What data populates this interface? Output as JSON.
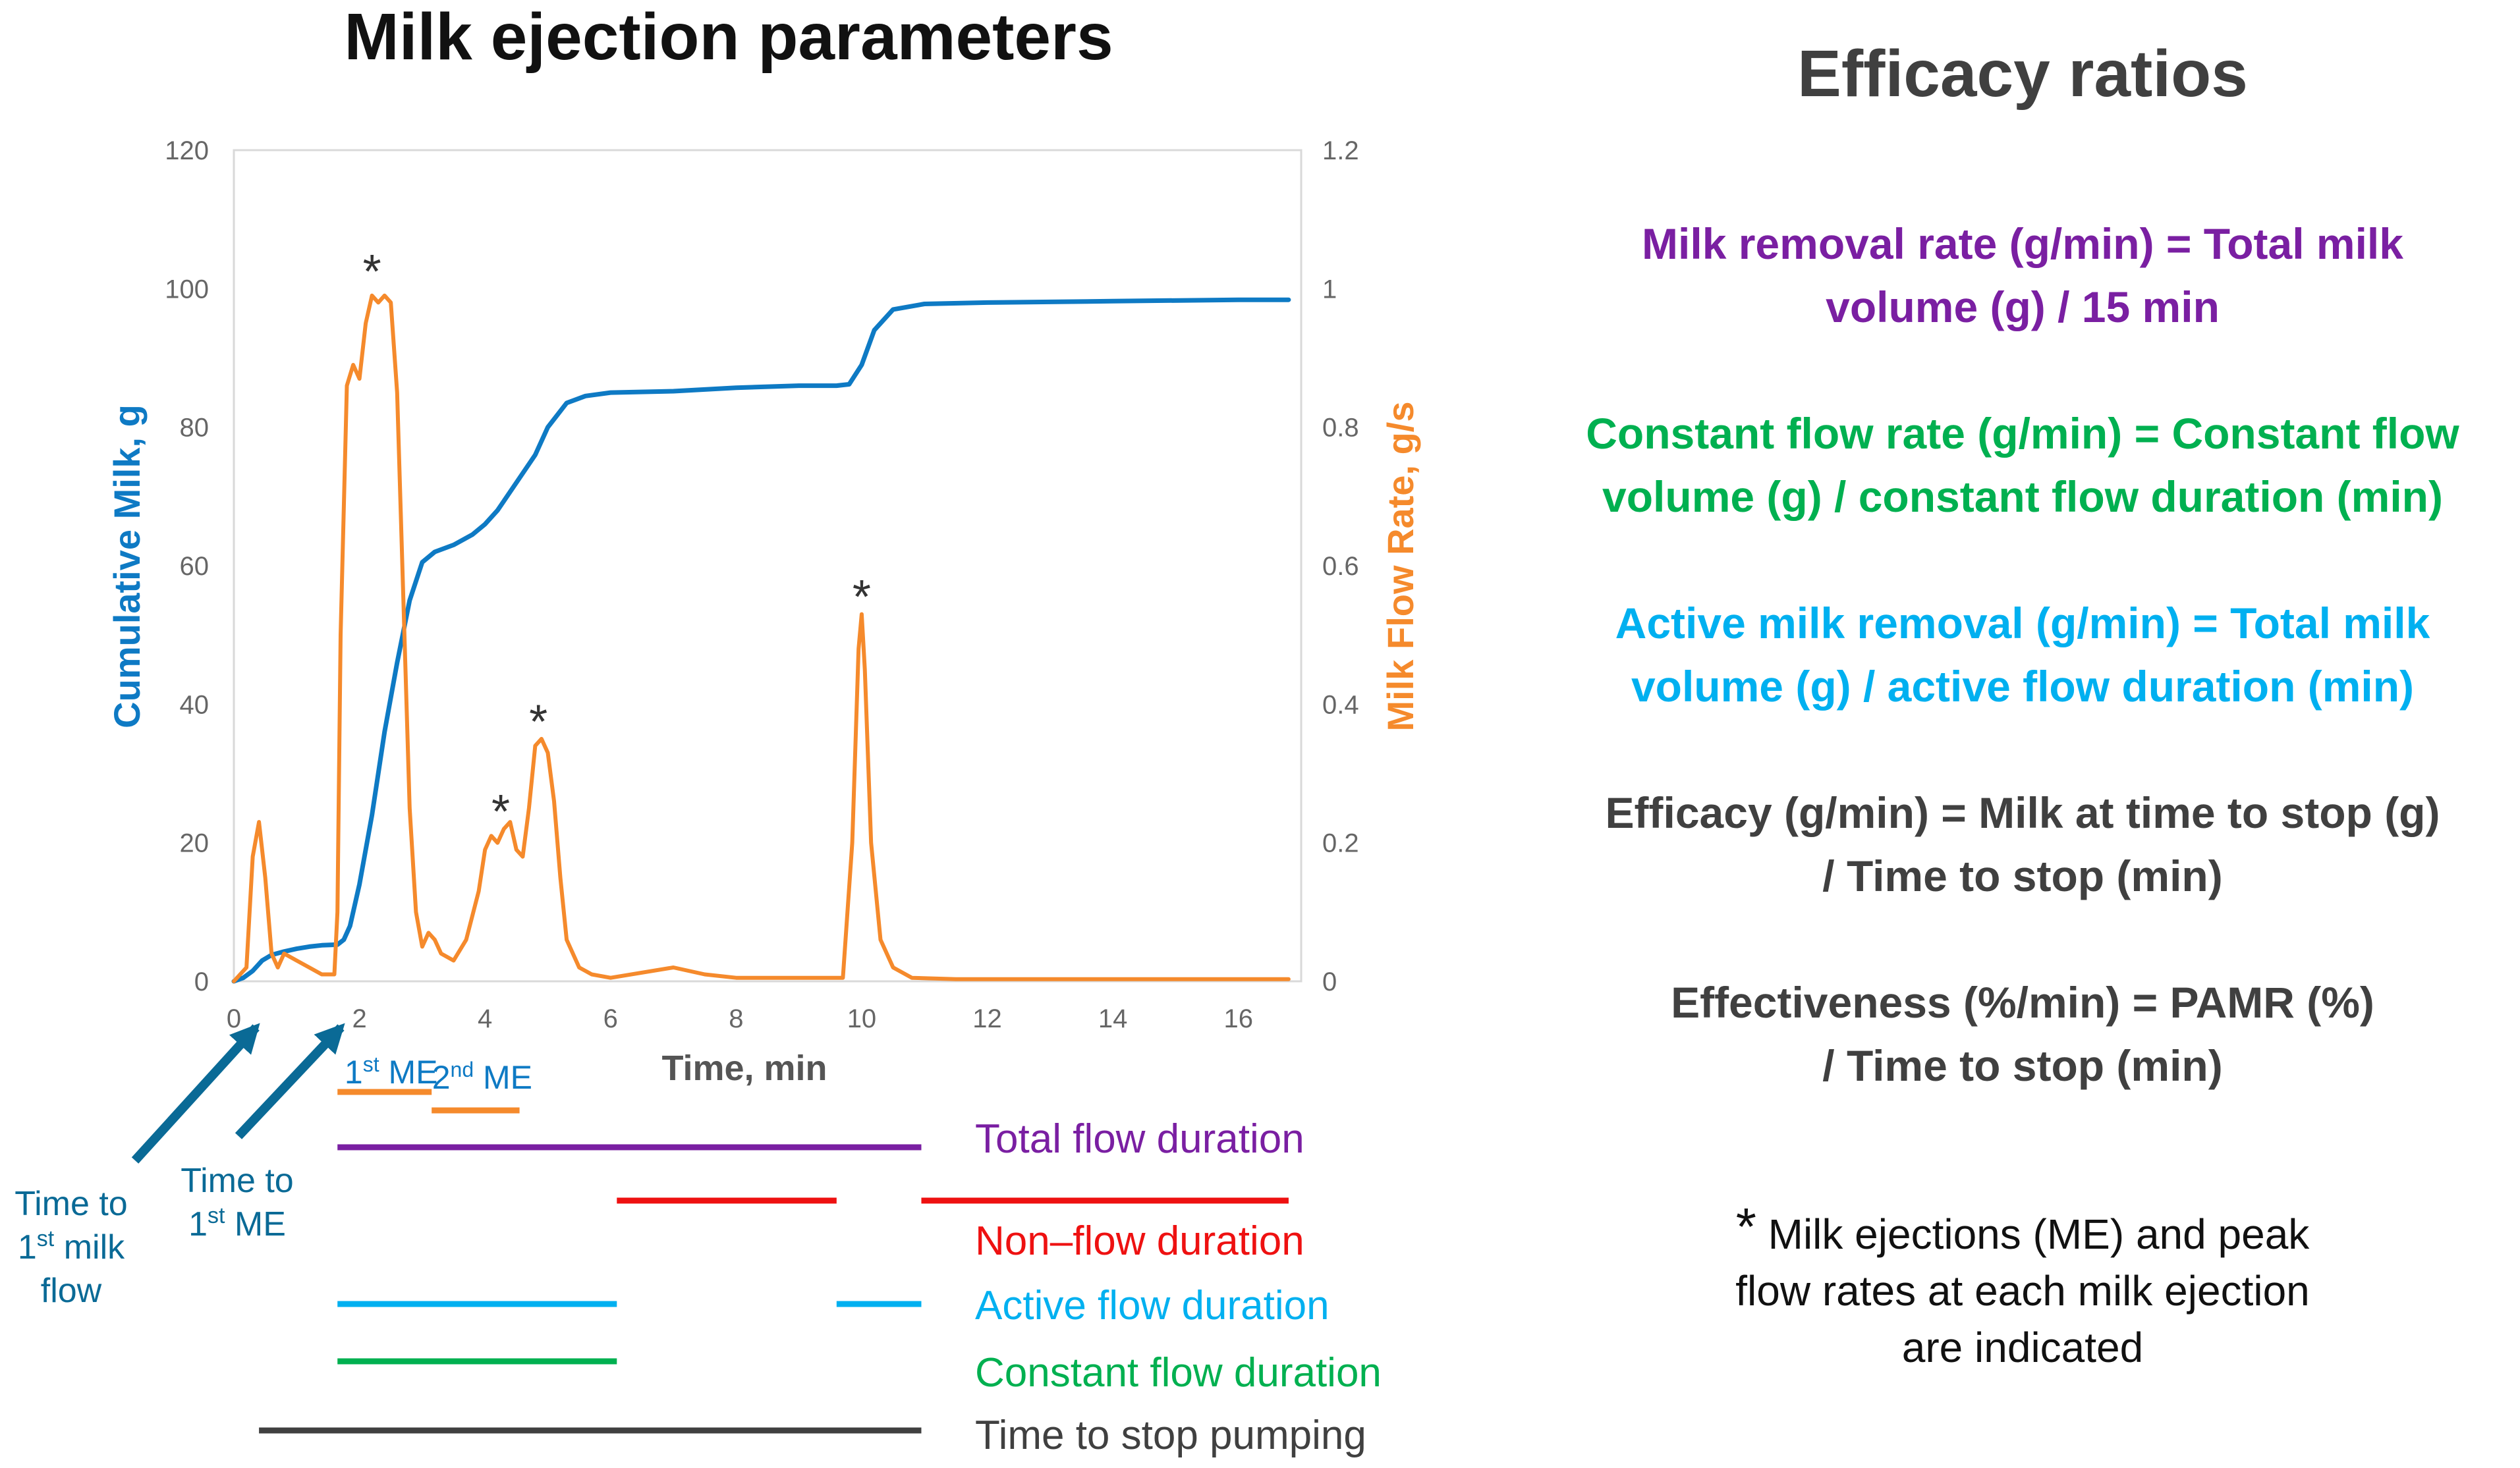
{
  "colors": {
    "cumulative": "#0e7ac4",
    "flow": "#f58a2c",
    "purple": "#7a1fa2",
    "green": "#00b050",
    "cyan": "#00b0f0",
    "red": "#ee1111",
    "dark": "#404040",
    "arrow": "#0a6a96"
  },
  "chart_data": {
    "type": "line",
    "title": "Milk ejection parameters",
    "xlabel": "Time, min",
    "ylabel_left": "Cumulative Milk, g",
    "ylabel_right": "Milk Flow Rate, g/s",
    "xlim": [
      0,
      17
    ],
    "ylim_left": [
      0,
      120
    ],
    "ylim_right": [
      0,
      1.2
    ],
    "xticks": [
      "0",
      "2",
      "4",
      "6",
      "8",
      "10",
      "12",
      "14",
      "16"
    ],
    "yticks_left": [
      "0",
      "20",
      "40",
      "60",
      "80",
      "100",
      "120"
    ],
    "yticks_right": [
      "0",
      "0.2",
      "0.4",
      "0.6",
      "0.8",
      "1",
      "1.2"
    ],
    "grid": false,
    "series": [
      {
        "name": "Cumulative Milk, g",
        "axis": "left",
        "x": [
          0,
          0.15,
          0.3,
          0.45,
          0.6,
          0.8,
          1.0,
          1.2,
          1.4,
          1.65,
          1.75,
          1.85,
          2.0,
          2.2,
          2.4,
          2.6,
          2.8,
          3.0,
          3.2,
          3.5,
          3.8,
          4.0,
          4.2,
          4.5,
          4.8,
          5.0,
          5.3,
          5.6,
          6.0,
          7.0,
          8.0,
          9.0,
          9.6,
          9.8,
          10.0,
          10.2,
          10.5,
          11.0,
          12.0,
          14.0,
          16.0,
          16.8
        ],
        "y": [
          0,
          0.5,
          1.5,
          3,
          3.8,
          4.3,
          4.7,
          5,
          5.2,
          5.3,
          6,
          8,
          14,
          24,
          36,
          46,
          55,
          60.5,
          62,
          63,
          64.5,
          66,
          68,
          72,
          76,
          80,
          83.5,
          84.5,
          85,
          85.2,
          85.7,
          86,
          86,
          86.2,
          89,
          94,
          97,
          97.8,
          98,
          98.2,
          98.4,
          98.4
        ]
      },
      {
        "name": "Milk Flow Rate, g/s",
        "axis": "right",
        "x": [
          0,
          0.2,
          0.3,
          0.4,
          0.5,
          0.6,
          0.7,
          0.8,
          1.0,
          1.2,
          1.4,
          1.6,
          1.65,
          1.7,
          1.8,
          1.9,
          2.0,
          2.1,
          2.2,
          2.3,
          2.4,
          2.5,
          2.6,
          2.7,
          2.8,
          2.9,
          3.0,
          3.1,
          3.2,
          3.3,
          3.5,
          3.7,
          3.9,
          4.0,
          4.1,
          4.2,
          4.3,
          4.4,
          4.5,
          4.6,
          4.7,
          4.8,
          4.9,
          5.0,
          5.1,
          5.2,
          5.3,
          5.5,
          5.7,
          6.0,
          7.0,
          7.5,
          8.0,
          9.0,
          9.7,
          9.85,
          9.95,
          10.0,
          10.05,
          10.15,
          10.3,
          10.5,
          10.8,
          11.5,
          12.5,
          13.5,
          14.5,
          15.5,
          16.8
        ],
        "y": [
          0,
          0.02,
          0.18,
          0.23,
          0.15,
          0.04,
          0.02,
          0.04,
          0.03,
          0.02,
          0.01,
          0.01,
          0.1,
          0.5,
          0.86,
          0.89,
          0.87,
          0.95,
          0.99,
          0.98,
          0.99,
          0.98,
          0.85,
          0.55,
          0.25,
          0.1,
          0.05,
          0.07,
          0.06,
          0.04,
          0.03,
          0.06,
          0.13,
          0.19,
          0.21,
          0.2,
          0.22,
          0.23,
          0.19,
          0.18,
          0.25,
          0.34,
          0.35,
          0.33,
          0.26,
          0.15,
          0.06,
          0.02,
          0.01,
          0.005,
          0.02,
          0.01,
          0.005,
          0.005,
          0.005,
          0.2,
          0.48,
          0.53,
          0.45,
          0.2,
          0.06,
          0.02,
          0.005,
          0.003,
          0.003,
          0.003,
          0.003,
          0.003,
          0.003
        ]
      }
    ],
    "annotations": [
      {
        "text": "*",
        "x": 2.2,
        "y_left": 103
      },
      {
        "text": "*",
        "x": 4.25,
        "y_left": 25
      },
      {
        "text": "*",
        "x": 4.85,
        "y_left": 38
      },
      {
        "text": "*",
        "x": 10.0,
        "y_left": 56
      }
    ],
    "event_arrows": [
      {
        "label": [
          "Time to",
          "1st milk",
          "flow"
        ],
        "x": 0.3
      },
      {
        "label": [
          "Time to",
          "1st ME"
        ],
        "x": 1.6
      }
    ],
    "me_segments": [
      {
        "label": "1st ME",
        "start": 1.65,
        "end": 3.15
      },
      {
        "label": "2nd ME",
        "start": 3.15,
        "end": 4.55
      }
    ],
    "duration_bars": [
      {
        "label": "Total flow duration",
        "color_key": "purple",
        "segments": [
          [
            1.65,
            10.95
          ]
        ]
      },
      {
        "label": "Non–flow duration",
        "color_key": "red",
        "segments": [
          [
            6.1,
            9.6
          ],
          [
            10.95,
            16.8
          ]
        ]
      },
      {
        "label": "Active flow duration",
        "color_key": "cyan",
        "segments": [
          [
            1.65,
            6.1
          ],
          [
            9.6,
            10.95
          ]
        ]
      },
      {
        "label": "Constant flow duration",
        "color_key": "green",
        "segments": [
          [
            1.65,
            6.1
          ]
        ]
      },
      {
        "label": "Time to stop pumping",
        "color_key": "dark",
        "segments": [
          [
            0.4,
            10.95
          ]
        ]
      }
    ]
  },
  "ratios": {
    "title": "Efficacy ratios",
    "milk_removal": [
      "Milk removal rate (g/min) = Total milk",
      "volume (g) / 15 min"
    ],
    "constant_flow": [
      "Constant flow rate (g/min) = Constant flow",
      "volume (g) / constant flow duration (min)"
    ],
    "active_removal": [
      "Active milk removal (g/min) = Total milk",
      "volume (g) / active flow duration (min)"
    ],
    "efficacy": [
      "Efficacy (g/min) = Milk at time  to stop (g)",
      "/ Time to stop (min)"
    ],
    "effectiveness": [
      "Effectiveness (%/min) = PAMR (%)",
      "/ Time to stop (min)"
    ],
    "footnote_star": "*",
    "footnote": [
      " Milk ejections (ME) and peak",
      "flow rates at each milk ejection",
      "are indicated"
    ]
  }
}
